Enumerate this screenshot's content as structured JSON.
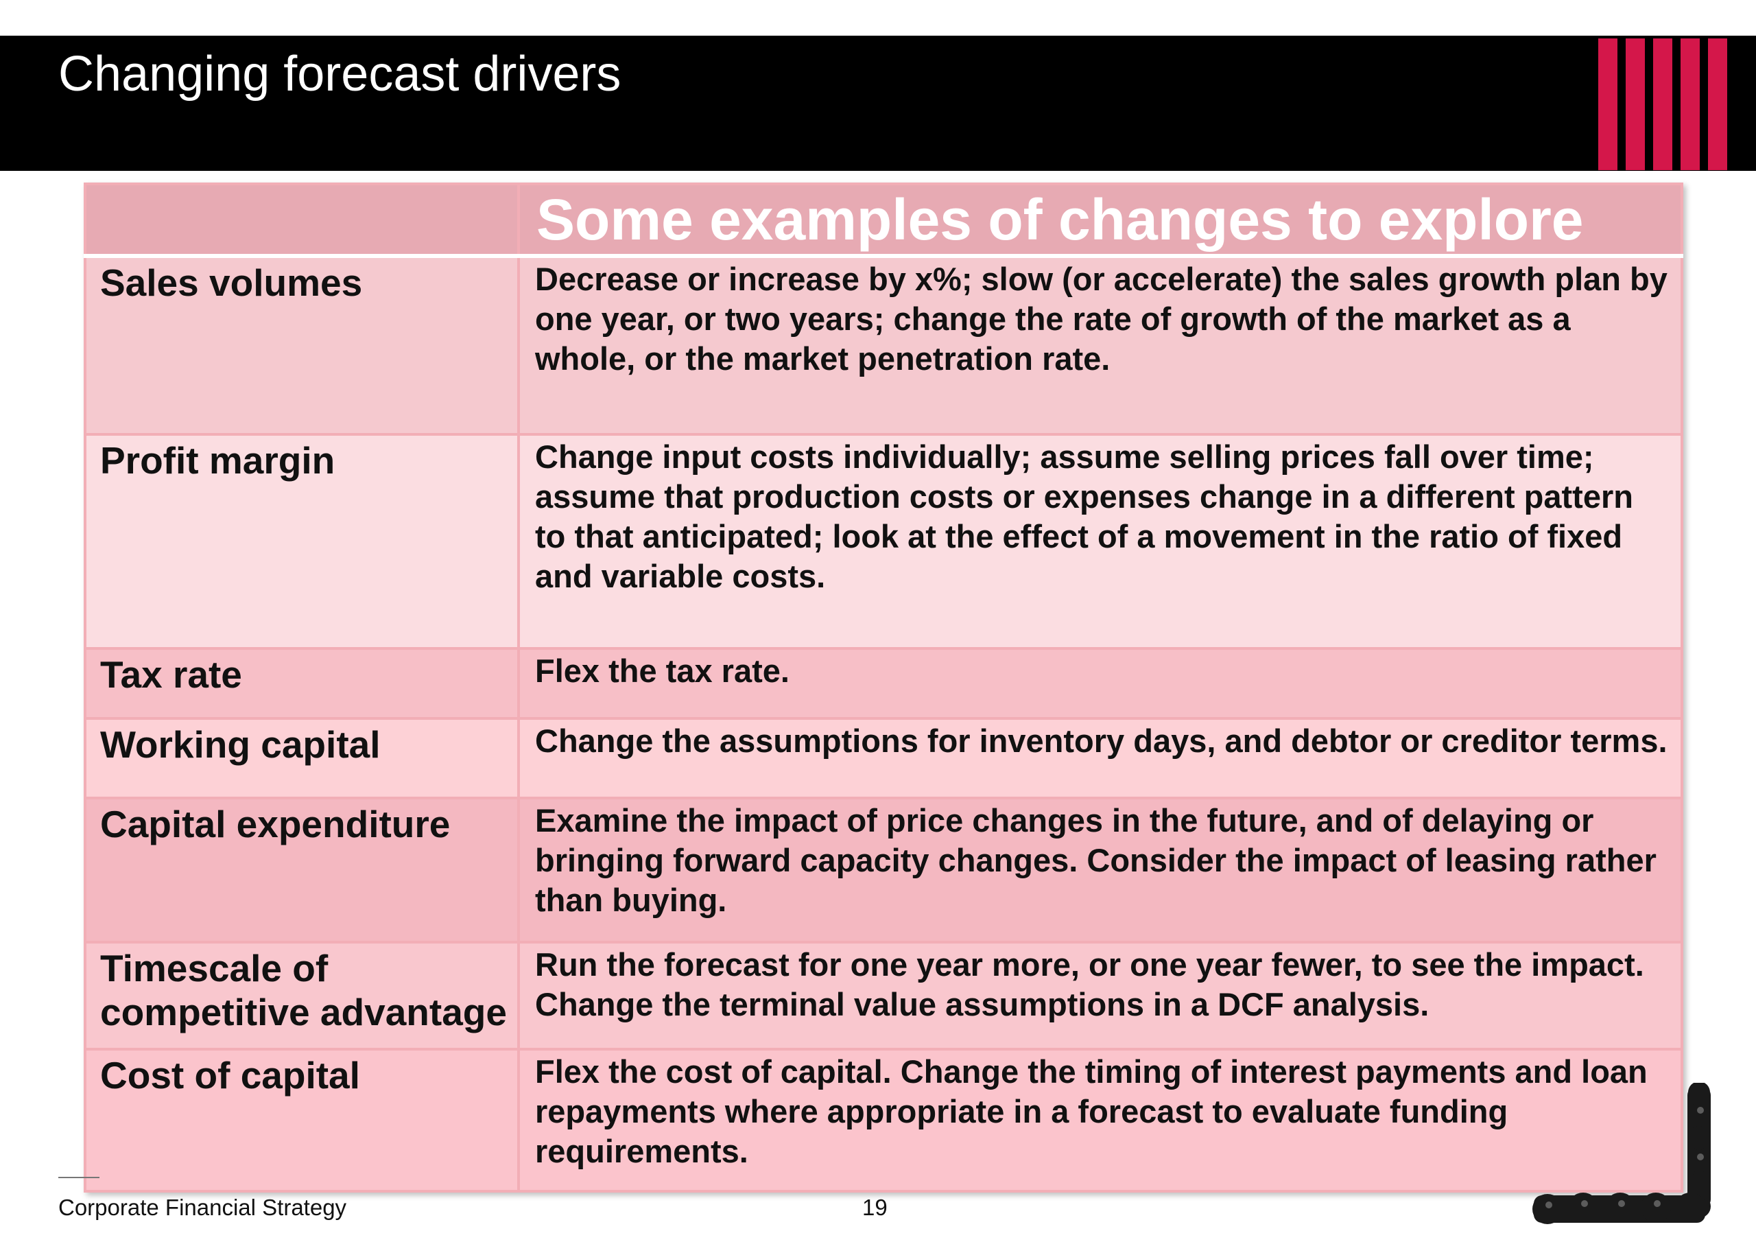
{
  "slide": {
    "title": "Changing forecast drivers",
    "accent_color": "#d4174a",
    "header_bg": "#000000"
  },
  "table": {
    "header": {
      "label": "",
      "text": "Some examples of changes to explore"
    },
    "rows": [
      {
        "label": "Sales volumes",
        "text": "Decrease or increase by x%; slow (or accelerate) the sales growth plan by one year, or two years; change the rate of growth of the market as a whole, or the market penetration rate."
      },
      {
        "label": "Profit margin",
        "text": "Change input costs individually; assume selling prices fall over time; assume that production costs or expenses change in a different pattern to that anticipated; look at the effect of a movement in the ratio of fixed and variable costs."
      },
      {
        "label": "Tax rate",
        "text": "Flex the tax rate."
      },
      {
        "label": "Working capital",
        "text": "Change the assumptions for inventory days, and debtor or creditor terms."
      },
      {
        "label": "Capital expenditure",
        "text": "Examine the impact of price changes in the future, and of delaying or bringing forward capacity changes. Consider the impact of leasing rather than buying."
      },
      {
        "label": "Timescale of competitive advantage",
        "text": "Run the forecast for one year more, or one year fewer, to see the impact. Change the terminal value assumptions in a DCF analysis."
      },
      {
        "label": "Cost of capital",
        "text": "Flex the cost of capital. Change the timing of interest payments and loan repayments where appropriate in a forecast to evaluate funding requirements."
      }
    ]
  },
  "footer": {
    "source": "Corporate Financial Strategy",
    "page_number": "19"
  },
  "icons": {
    "logo": "chess-pieces-logo-icon",
    "stripes": "red-stripes-decoration-icon"
  }
}
